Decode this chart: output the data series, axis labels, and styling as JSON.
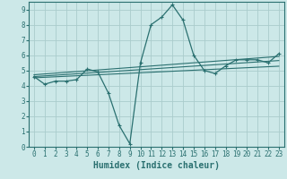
{
  "bg_color": "#cce8e8",
  "grid_color": "#aacccc",
  "line_color": "#2a7070",
  "xlabel": "Humidex (Indice chaleur)",
  "xlim": [
    -0.5,
    23.5
  ],
  "ylim": [
    0,
    9.5
  ],
  "xticks": [
    0,
    1,
    2,
    3,
    4,
    5,
    6,
    7,
    8,
    9,
    10,
    11,
    12,
    13,
    14,
    15,
    16,
    17,
    18,
    19,
    20,
    21,
    22,
    23
  ],
  "yticks": [
    0,
    1,
    2,
    3,
    4,
    5,
    6,
    7,
    8,
    9
  ],
  "line1_x": [
    0,
    1,
    2,
    3,
    4,
    5,
    6,
    7,
    8,
    9,
    10,
    11,
    12,
    13,
    14,
    15,
    16,
    17,
    18,
    19,
    20,
    21,
    22,
    23
  ],
  "line1_y": [
    4.6,
    4.1,
    4.3,
    4.3,
    4.4,
    5.1,
    4.9,
    3.5,
    1.4,
    0.2,
    5.5,
    8.0,
    8.5,
    9.3,
    8.3,
    6.0,
    5.0,
    4.8,
    5.3,
    5.7,
    5.7,
    5.7,
    5.5,
    6.1
  ],
  "line2_x": [
    0,
    23
  ],
  "line2_y": [
    4.6,
    5.65
  ],
  "line3_x": [
    0,
    23
  ],
  "line3_y": [
    4.72,
    5.92
  ],
  "line4_x": [
    0,
    23
  ],
  "line4_y": [
    4.52,
    5.28
  ]
}
